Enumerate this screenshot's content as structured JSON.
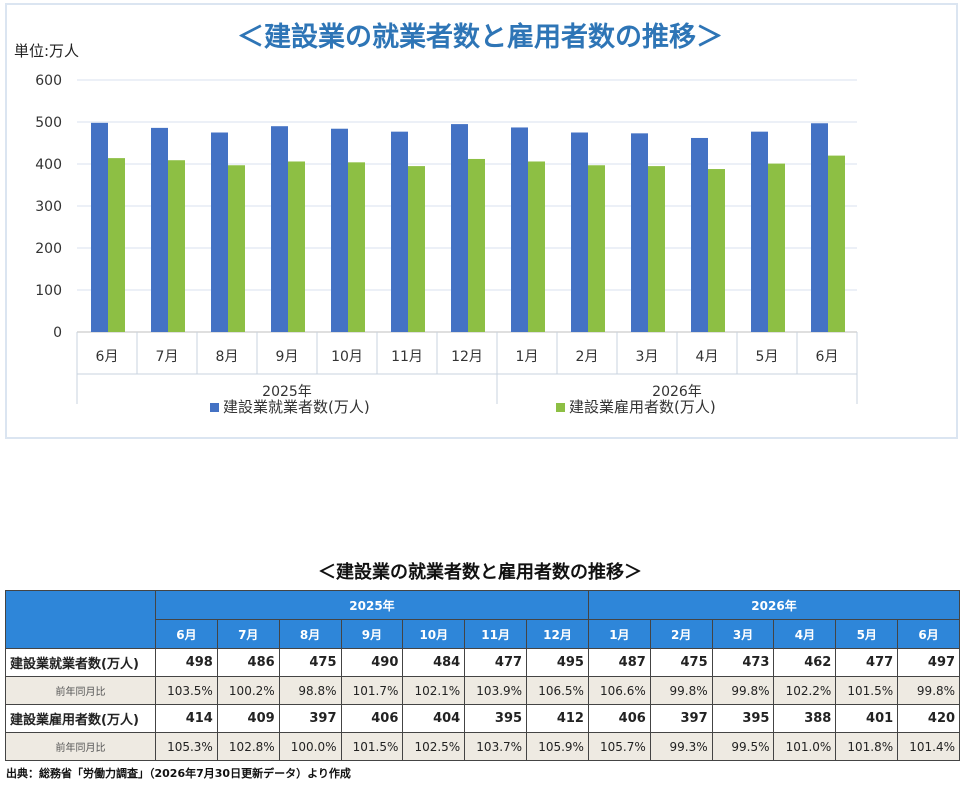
{
  "chart_data": {
    "type": "bar",
    "title": "＜建設業の就業者数と雇用者数の推移＞",
    "unit_label": "単位:万人",
    "ylim": [
      0,
      600
    ],
    "yticks": [
      0,
      100,
      200,
      300,
      400,
      500,
      600
    ],
    "grid": true,
    "legend_position": "bottom",
    "categories": [
      "6月",
      "7月",
      "8月",
      "9月",
      "10月",
      "11月",
      "12月",
      "1月",
      "2月",
      "3月",
      "4月",
      "5月",
      "6月"
    ],
    "year_groups": [
      {
        "label": "2025年",
        "span": 7
      },
      {
        "label": "2026年",
        "span": 6
      }
    ],
    "series": [
      {
        "name": "建設業就業者数(万人)",
        "color": "#4472c4",
        "values": [
          498,
          486,
          475,
          490,
          484,
          477,
          495,
          487,
          475,
          473,
          462,
          477,
          497
        ]
      },
      {
        "name": "建設業雇用者数(万人)",
        "color": "#8dbf44",
        "values": [
          414,
          409,
          397,
          406,
          404,
          395,
          412,
          406,
          397,
          395,
          388,
          401,
          420
        ]
      }
    ]
  },
  "table": {
    "title": "＜建設業の就業者数と雇用者数の推移＞",
    "years": [
      {
        "label": "2025年",
        "span": 7
      },
      {
        "label": "2026年",
        "span": 6
      }
    ],
    "months": [
      "6月",
      "7月",
      "8月",
      "9月",
      "10月",
      "11月",
      "12月",
      "1月",
      "2月",
      "3月",
      "4月",
      "5月",
      "6月"
    ],
    "rows": [
      {
        "label": "建設業就業者数(万人)",
        "kind": "value",
        "cells": [
          "498",
          "486",
          "475",
          "490",
          "484",
          "477",
          "495",
          "487",
          "475",
          "473",
          "462",
          "477",
          "497"
        ]
      },
      {
        "label": "前年同月比",
        "kind": "yoy",
        "cells": [
          "103.5%",
          "100.2%",
          "98.8%",
          "101.7%",
          "102.1%",
          "103.9%",
          "106.5%",
          "106.6%",
          "99.8%",
          "99.8%",
          "102.2%",
          "101.5%",
          "99.8%"
        ]
      },
      {
        "label": "建設業雇用者数(万人)",
        "kind": "value",
        "cells": [
          "414",
          "409",
          "397",
          "406",
          "404",
          "395",
          "412",
          "406",
          "397",
          "395",
          "388",
          "401",
          "420"
        ]
      },
      {
        "label": "前年同月比",
        "kind": "yoy",
        "cells": [
          "105.3%",
          "102.8%",
          "100.0%",
          "101.5%",
          "102.5%",
          "103.7%",
          "105.9%",
          "105.7%",
          "99.3%",
          "99.5%",
          "101.0%",
          "101.8%",
          "101.4%"
        ]
      }
    ]
  },
  "source_note": "出典：総務省「労働力調査」（2026年7月30日更新データ）より作成"
}
